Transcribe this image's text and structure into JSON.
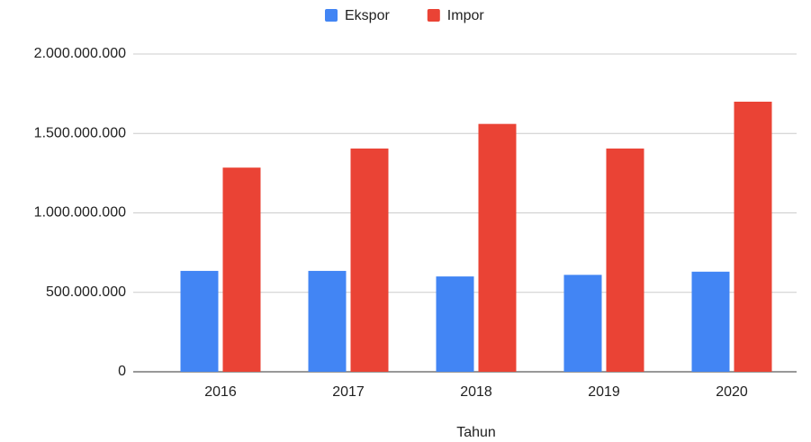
{
  "chart_data": {
    "type": "bar",
    "categories": [
      "2016",
      "2017",
      "2018",
      "2019",
      "2020"
    ],
    "series": [
      {
        "name": "Ekspor",
        "color": "#4285f4",
        "values": [
          635000000,
          635000000,
          600000000,
          610000000,
          630000000
        ]
      },
      {
        "name": "Impor",
        "color": "#ea4335",
        "values": [
          1285000000,
          1405000000,
          1560000000,
          1405000000,
          1700000000
        ]
      }
    ],
    "x_label": "Tahun",
    "ylim": [
      0,
      2000000000
    ],
    "yticks": [
      0,
      {
        "value": 500000000,
        "label": "500.000.000"
      },
      {
        "value": 1000000000,
        "label": "1.000.000.000"
      },
      {
        "value": 1500000000,
        "label": "1.500.000.000"
      },
      {
        "value": 2000000000,
        "label": "2.000.000.000"
      }
    ],
    "grid": true,
    "legend": "top"
  }
}
